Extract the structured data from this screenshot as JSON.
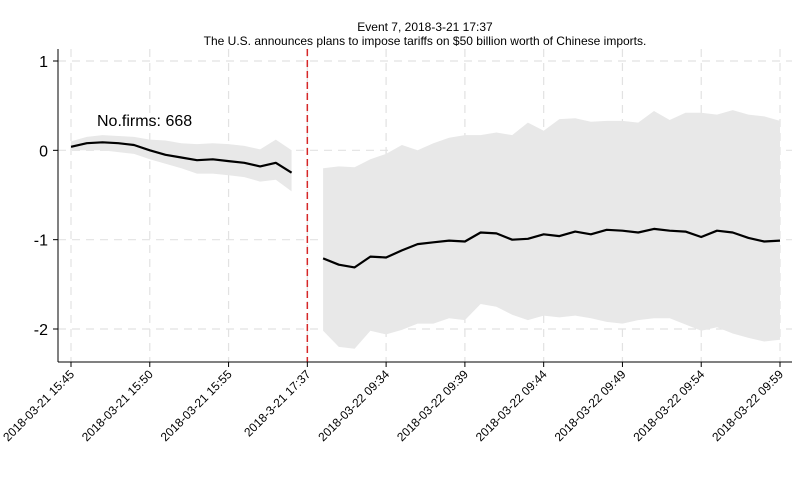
{
  "chart_data": {
    "type": "line",
    "title": "Event 7, 2018-3-21 17:37",
    "subtitle": "The U.S. announces plans to impose tariffs on $50 billion worth of Chinese imports.",
    "annotation": "No.firms: 668",
    "xlabel": "",
    "ylabel": "",
    "ylim": [
      -2.35,
      1.1
    ],
    "yticks": [
      1,
      0,
      -1,
      -2
    ],
    "ytick_labels": [
      "1",
      "0",
      "-1",
      "-2"
    ],
    "xticks": [
      0,
      5,
      10,
      15,
      20,
      25,
      30,
      35,
      40,
      45
    ],
    "xtick_labels": [
      "2018-03-21 15:45",
      "2018-03-21 15:50",
      "2018-03-21 15:55",
      "2018-3-21 17:37",
      "2018-03-22 09:34",
      "2018-03-22 09:39",
      "2018-03-22 09:44",
      "2018-03-22 09:49",
      "2018-03-22 09:54",
      "2018-03-22 09:59"
    ],
    "event_x": 15,
    "event_line_color": "#d62728",
    "grid": true,
    "series": [
      {
        "segment": "pre-event",
        "color": "#000000",
        "band_color": "#e8e8e8",
        "x": [
          0,
          1,
          2,
          3,
          4,
          5,
          6,
          7,
          8,
          9,
          10,
          11,
          12,
          13,
          14
        ],
        "values": [
          0.04,
          0.08,
          0.09,
          0.08,
          0.06,
          0.0,
          -0.05,
          -0.08,
          -0.11,
          -0.1,
          -0.12,
          -0.14,
          -0.18,
          -0.14,
          -0.25
        ],
        "lower": [
          0.0,
          0.0,
          0.0,
          -0.02,
          -0.04,
          -0.1,
          -0.15,
          -0.2,
          -0.26,
          -0.26,
          -0.28,
          -0.3,
          -0.35,
          -0.33,
          -0.46
        ],
        "upper": [
          0.1,
          0.15,
          0.17,
          0.16,
          0.15,
          0.12,
          0.11,
          0.08,
          0.07,
          0.08,
          0.07,
          0.05,
          0.01,
          0.12,
          0.0
        ]
      },
      {
        "segment": "post-event",
        "color": "#000000",
        "band_color": "#e8e8e8",
        "x": [
          16,
          17,
          18,
          19,
          20,
          21,
          22,
          23,
          24,
          25,
          26,
          27,
          28,
          29,
          30,
          31,
          32,
          33,
          34,
          35,
          36,
          37,
          38,
          39,
          40,
          41,
          42,
          43,
          44,
          45
        ],
        "values": [
          -1.21,
          -1.28,
          -1.31,
          -1.19,
          -1.2,
          -1.12,
          -1.05,
          -1.03,
          -1.01,
          -1.02,
          -0.92,
          -0.93,
          -1.0,
          -0.99,
          -0.94,
          -0.96,
          -0.91,
          -0.94,
          -0.89,
          -0.9,
          -0.92,
          -0.88,
          -0.9,
          -0.91,
          -0.97,
          -0.9,
          -0.92,
          -0.98,
          -1.02,
          -1.01
        ],
        "lower": [
          -2.02,
          -2.2,
          -2.22,
          -2.02,
          -2.06,
          -2.01,
          -1.94,
          -1.94,
          -1.88,
          -1.9,
          -1.72,
          -1.75,
          -1.84,
          -1.9,
          -1.85,
          -1.87,
          -1.85,
          -1.88,
          -1.92,
          -1.94,
          -1.9,
          -1.88,
          -1.88,
          -1.95,
          -2.02,
          -1.98,
          -2.05,
          -2.1,
          -2.14,
          -2.12
        ],
        "upper": [
          -0.2,
          -0.18,
          -0.19,
          -0.1,
          -0.04,
          0.06,
          0.0,
          0.08,
          0.14,
          0.17,
          0.17,
          0.2,
          0.17,
          0.31,
          0.22,
          0.35,
          0.36,
          0.32,
          0.33,
          0.33,
          0.31,
          0.44,
          0.34,
          0.42,
          0.42,
          0.4,
          0.45,
          0.4,
          0.38,
          0.33
        ]
      }
    ]
  }
}
